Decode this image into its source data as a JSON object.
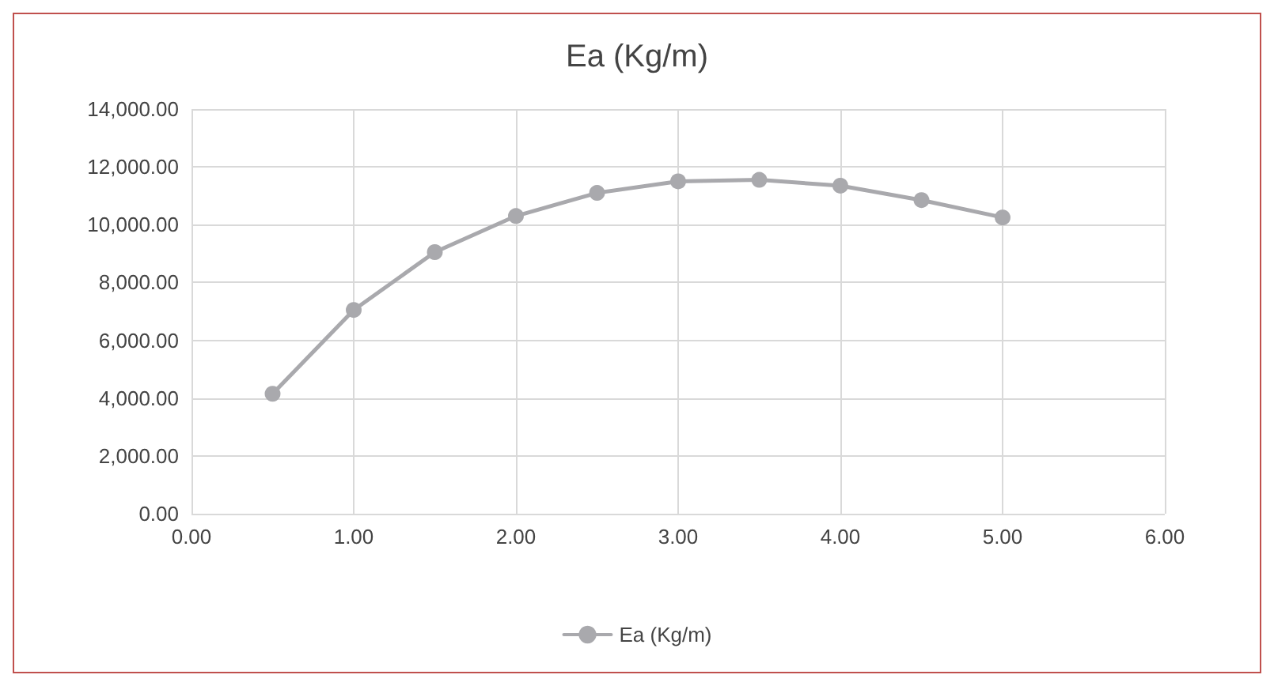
{
  "chart_data": {
    "type": "line",
    "title": "Ea (Kg/m)",
    "x": [
      0.5,
      1.0,
      1.5,
      2.0,
      2.5,
      3.0,
      3.5,
      4.0,
      4.5,
      5.0
    ],
    "series": [
      {
        "name": "Ea (Kg/m)",
        "color": "#a9a9ad",
        "values": [
          4150,
          7050,
          9050,
          10300,
          11100,
          11500,
          11550,
          11350,
          10850,
          10250
        ]
      }
    ],
    "xlim": [
      0,
      6
    ],
    "xticks": [
      {
        "value": 0,
        "label": "0.00"
      },
      {
        "value": 1,
        "label": "1.00"
      },
      {
        "value": 2,
        "label": "2.00"
      },
      {
        "value": 3,
        "label": "3.00"
      },
      {
        "value": 4,
        "label": "4.00"
      },
      {
        "value": 5,
        "label": "5.00"
      },
      {
        "value": 6,
        "label": "6.00"
      }
    ],
    "ylim": [
      0,
      14000
    ],
    "yticks": [
      {
        "value": 0,
        "label": "0.00"
      },
      {
        "value": 2000,
        "label": "2,000.00"
      },
      {
        "value": 4000,
        "label": "4,000.00"
      },
      {
        "value": 6000,
        "label": "6,000.00"
      },
      {
        "value": 8000,
        "label": "8,000.00"
      },
      {
        "value": 10000,
        "label": "10,000.00"
      },
      {
        "value": 12000,
        "label": "12,000.00"
      },
      {
        "value": 14000,
        "label": "14,000.00"
      }
    ],
    "grid": true,
    "legend": "bottom",
    "marker": "circle",
    "line_style": "solid"
  }
}
